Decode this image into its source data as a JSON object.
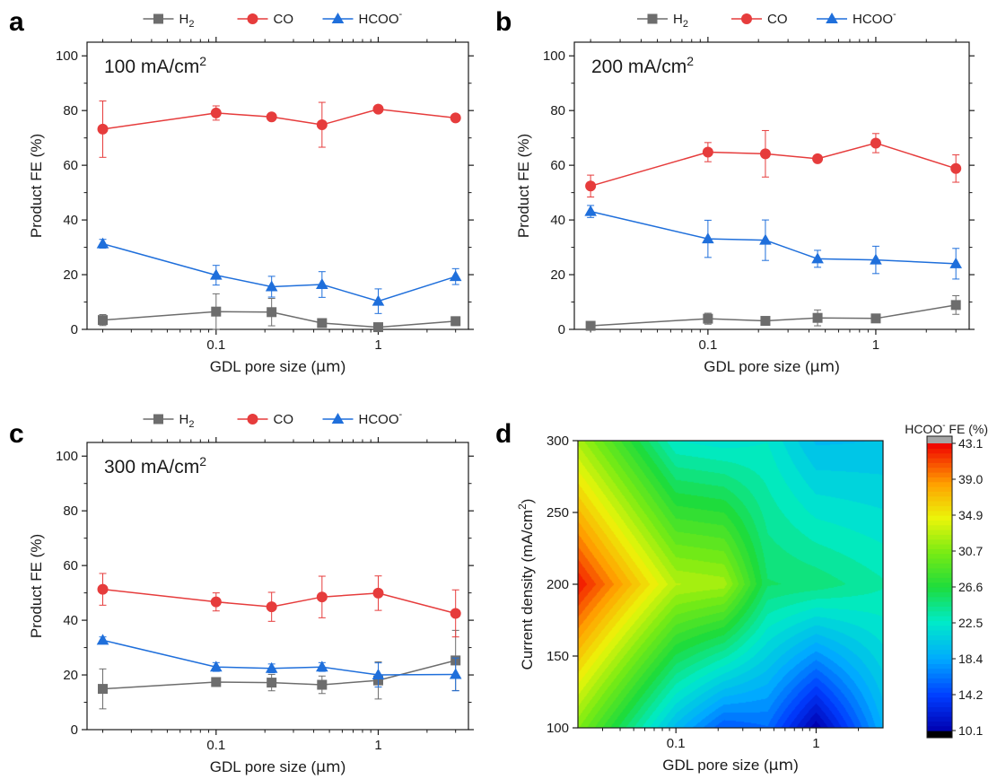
{
  "chart_data": [
    {
      "panel": "a",
      "type": "line",
      "annotation_base": "100 mA/cm",
      "annotation_sup": "2",
      "xlabel_prefix": "GDL pore size (",
      "xlabel_unit": "µm",
      "xlabel_suffix": ")",
      "ylabel": "Product FE (%)",
      "xscale": "log",
      "xlim": [
        0.016,
        3.6
      ],
      "ylim": [
        0,
        105
      ],
      "xticks": [
        {
          "v": 0.1,
          "label": "0.1"
        },
        {
          "v": 1,
          "label": "1"
        }
      ],
      "yticks": [
        0,
        20,
        40,
        60,
        80,
        100
      ],
      "legend": "top",
      "x": [
        0.02,
        0.1,
        0.22,
        0.45,
        1,
        3
      ],
      "series": [
        {
          "name": "H",
          "sub": "2",
          "sup": "",
          "color": "#6d6d6d",
          "marker": "square",
          "values": [
            3.4,
            6.5,
            6.3,
            2.3,
            0.8,
            3.0
          ],
          "err": [
            2.0,
            6.5,
            5.0,
            1.2,
            0.8,
            1.6
          ]
        },
        {
          "name": "CO",
          "sub": "",
          "sup": "",
          "color": "#e63c3c",
          "marker": "circle",
          "values": [
            73.2,
            79.1,
            77.7,
            74.8,
            80.5,
            77.3
          ],
          "err": [
            10.3,
            2.6,
            1.0,
            8.2,
            0.8,
            0.8
          ]
        },
        {
          "name": "HCOO",
          "sub": "",
          "sup": "-",
          "color": "#1f6fdb",
          "marker": "triangle",
          "values": [
            31.3,
            19.8,
            15.6,
            16.4,
            10.3,
            19.3
          ],
          "err": [
            1.6,
            3.6,
            3.8,
            4.7,
            4.5,
            2.9
          ]
        }
      ]
    },
    {
      "panel": "b",
      "type": "line",
      "annotation_base": "200 mA/cm",
      "annotation_sup": "2",
      "xlabel_prefix": "GDL pore size (",
      "xlabel_unit": "µm",
      "xlabel_suffix": ")",
      "ylabel": "Product FE (%)",
      "xscale": "log",
      "xlim": [
        0.016,
        3.6
      ],
      "ylim": [
        0,
        105
      ],
      "xticks": [
        {
          "v": 0.1,
          "label": "0.1"
        },
        {
          "v": 1,
          "label": "1"
        }
      ],
      "yticks": [
        0,
        20,
        40,
        60,
        80,
        100
      ],
      "legend": "top",
      "x": [
        0.02,
        0.1,
        0.22,
        0.45,
        1,
        3
      ],
      "series": [
        {
          "name": "H",
          "sub": "2",
          "sup": "",
          "color": "#6d6d6d",
          "marker": "square",
          "values": [
            1.3,
            3.9,
            3.1,
            4.2,
            4.0,
            8.9
          ],
          "err": [
            0.6,
            2.0,
            0.8,
            2.9,
            0.6,
            3.4
          ]
        },
        {
          "name": "CO",
          "sub": "",
          "sup": "",
          "color": "#e63c3c",
          "marker": "circle",
          "values": [
            52.4,
            64.8,
            64.2,
            62.4,
            68.1,
            58.8
          ],
          "err": [
            4.0,
            3.5,
            8.5,
            0.8,
            3.5,
            5.0
          ]
        },
        {
          "name": "HCOO",
          "sub": "",
          "sup": "-",
          "color": "#1f6fdb",
          "marker": "triangle",
          "values": [
            43.1,
            33.1,
            32.6,
            25.8,
            25.4,
            24.0
          ],
          "err": [
            2.2,
            6.8,
            7.4,
            3.1,
            5.0,
            5.6
          ]
        }
      ]
    },
    {
      "panel": "c",
      "type": "line",
      "annotation_base": "300 mA/cm",
      "annotation_sup": "2",
      "xlabel_prefix": "GDL pore size (",
      "xlabel_unit": "µm",
      "xlabel_suffix": ")",
      "ylabel": "Product FE (%)",
      "xscale": "log",
      "xlim": [
        0.016,
        3.6
      ],
      "ylim": [
        0,
        105
      ],
      "xticks": [
        {
          "v": 0.1,
          "label": "0.1"
        },
        {
          "v": 1,
          "label": "1"
        }
      ],
      "yticks": [
        0,
        20,
        40,
        60,
        80,
        100
      ],
      "legend": "top",
      "x": [
        0.02,
        0.1,
        0.22,
        0.45,
        1,
        3
      ],
      "series": [
        {
          "name": "H",
          "sub": "2",
          "sup": "",
          "color": "#6d6d6d",
          "marker": "square",
          "values": [
            14.9,
            17.4,
            17.2,
            16.4,
            18.0,
            25.3
          ],
          "err": [
            7.3,
            1.5,
            3.0,
            3.2,
            6.8,
            11.0
          ]
        },
        {
          "name": "CO",
          "sub": "",
          "sup": "",
          "color": "#e63c3c",
          "marker": "circle",
          "values": [
            51.3,
            46.7,
            44.9,
            48.5,
            49.9,
            42.5
          ],
          "err": [
            5.8,
            3.3,
            5.3,
            7.6,
            6.3,
            8.6
          ]
        },
        {
          "name": "HCOO",
          "sub": "",
          "sup": "-",
          "color": "#1f6fdb",
          "marker": "triangle",
          "values": [
            32.7,
            22.9,
            22.4,
            22.9,
            20.0,
            20.2
          ],
          "err": [
            1.2,
            1.6,
            1.6,
            1.6,
            4.4,
            6.0
          ]
        }
      ]
    },
    {
      "panel": "d",
      "type": "heatmap",
      "xlabel_prefix": "GDL pore size (",
      "xlabel_unit": "µm",
      "xlabel_suffix": ")",
      "ylabel_base": "Current density (mA/cm",
      "ylabel_sup": "2",
      "ylabel_suffix": ")",
      "xscale": "log",
      "xlim": [
        0.02,
        3
      ],
      "ylim": [
        100,
        300
      ],
      "xticks": [
        {
          "v": 0.1,
          "label": "0.1"
        },
        {
          "v": 1,
          "label": "1"
        }
      ],
      "yticks": [
        100,
        150,
        200,
        250,
        300
      ],
      "x": [
        0.02,
        0.1,
        0.22,
        0.45,
        1,
        3
      ],
      "y": [
        100,
        200,
        300
      ],
      "z": [
        [
          31.3,
          19.8,
          15.6,
          16.4,
          10.3,
          19.3
        ],
        [
          43.1,
          33.1,
          32.6,
          25.8,
          25.4,
          24.0
        ],
        [
          32.7,
          22.9,
          22.4,
          22.9,
          20.0,
          20.2
        ]
      ],
      "colorbar": {
        "title_base": "HCOO",
        "title_sup": "-",
        "title_suffix": " FE (%)",
        "ticks": [
          "43.1",
          "39.0",
          "34.9",
          "30.7",
          "26.6",
          "22.5",
          "18.4",
          "14.2",
          "10.1"
        ],
        "min": 10.1,
        "max": 43.1,
        "over_color": "#a6a6a6",
        "under_color": "#000000"
      }
    }
  ]
}
